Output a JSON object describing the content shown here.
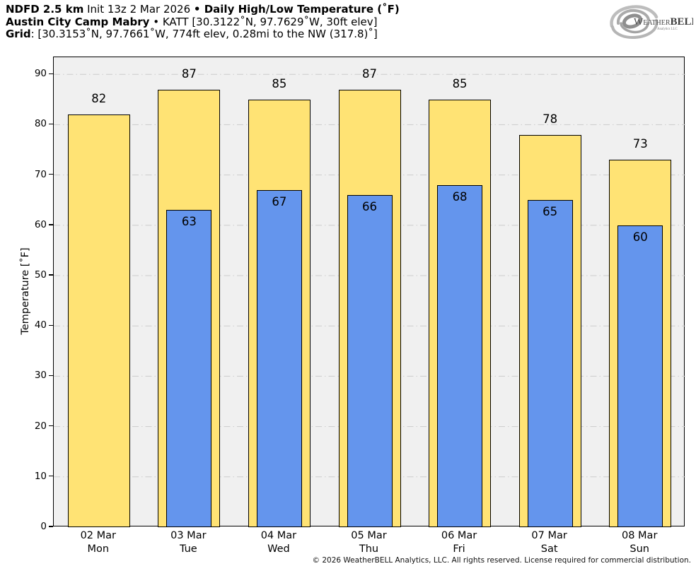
{
  "header": {
    "line1": {
      "model": "NDFD 2.5 km",
      "init": " Init 13z 2 Mar 2026 ",
      "bullet": "• ",
      "title": "Daily High/Low Temperature (˚F)"
    },
    "line2": {
      "station": "Austin City Camp Mabry",
      "rest": " • KATT [30.3122˚N, 97.7629˚W, 30ft elev]"
    },
    "line3": {
      "label": "Grid",
      "rest": ": [30.3153˚N, 97.7661˚W, 774ft elev, 0.28mi to the NW (317.8)˚]"
    }
  },
  "logo": {
    "word_main": "Weather",
    "word_bold": "BELL",
    "subtext": "Analytics LLC"
  },
  "footer": {
    "copyright": "© 2026 WeatherBELL Analytics, LLC. All rights reserved. License required for commercial distribution."
  },
  "chart_data": {
    "type": "bar",
    "title": "Daily High/Low Temperature (˚F)",
    "xlabel": "",
    "ylabel": "Temperature [˚F]",
    "ylim": [
      0,
      93.4
    ],
    "yticks": [
      0,
      10,
      20,
      30,
      40,
      50,
      60,
      70,
      80,
      90
    ],
    "grid": "horizontal dash-dot",
    "legend_position": "none",
    "categories": [
      {
        "date": "02 Mar",
        "day": "Mon"
      },
      {
        "date": "03 Mar",
        "day": "Tue"
      },
      {
        "date": "04 Mar",
        "day": "Wed"
      },
      {
        "date": "05 Mar",
        "day": "Thu"
      },
      {
        "date": "06 Mar",
        "day": "Fri"
      },
      {
        "date": "07 Mar",
        "day": "Sat"
      },
      {
        "date": "08 Mar",
        "day": "Sun"
      }
    ],
    "series": [
      {
        "name": "High",
        "color": "#FFE374",
        "values": [
          82,
          87,
          85,
          87,
          85,
          78,
          73
        ]
      },
      {
        "name": "Low",
        "color": "#6495ED",
        "values": [
          null,
          63,
          67,
          66,
          68,
          65,
          60
        ]
      }
    ],
    "colors": {
      "plot_background": "#f0f0f0",
      "grid_line": "#cccccc",
      "bar_outline": "#000000",
      "text": "#000000"
    }
  }
}
